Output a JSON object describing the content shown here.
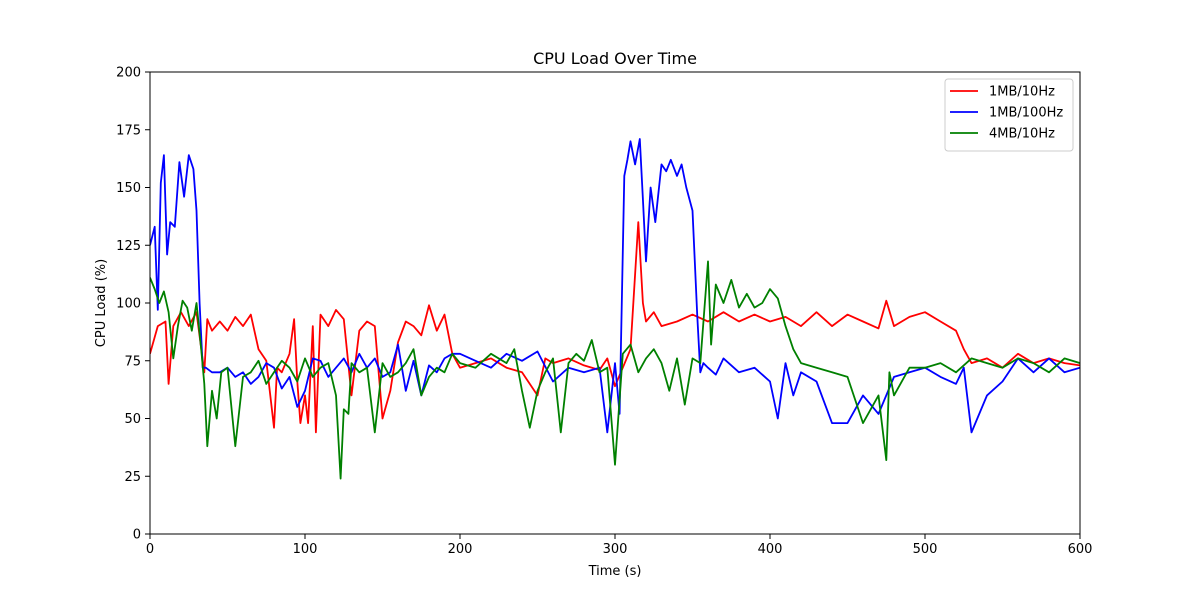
{
  "chart_data": {
    "type": "line",
    "title": "CPU Load Over Time",
    "xlabel": "Time (s)",
    "ylabel": "CPU Load (%)",
    "xlim": [
      0,
      600
    ],
    "ylim": [
      0,
      200
    ],
    "xticks": [
      0,
      100,
      200,
      300,
      400,
      500,
      600
    ],
    "yticks": [
      0,
      25,
      50,
      75,
      100,
      125,
      150,
      175,
      200
    ],
    "grid": false,
    "legend_position": "top-right",
    "series": [
      {
        "name": "1MB/10Hz",
        "color": "#ff0000",
        "x": [
          0,
          5,
          10,
          12,
          15,
          20,
          25,
          30,
          35,
          37,
          40,
          45,
          50,
          55,
          60,
          65,
          70,
          75,
          80,
          82,
          85,
          90,
          93,
          95,
          97,
          100,
          102,
          105,
          107,
          110,
          115,
          120,
          125,
          130,
          135,
          140,
          145,
          150,
          155,
          160,
          165,
          170,
          175,
          180,
          185,
          190,
          195,
          200,
          210,
          220,
          230,
          240,
          250,
          255,
          260,
          270,
          280,
          290,
          295,
          300,
          305,
          310,
          315,
          318,
          320,
          325,
          330,
          340,
          350,
          360,
          370,
          380,
          390,
          400,
          410,
          420,
          430,
          440,
          450,
          460,
          470,
          475,
          480,
          490,
          500,
          510,
          520,
          525,
          530,
          540,
          550,
          560,
          570,
          580,
          590,
          600
        ],
        "y": [
          78,
          90,
          92,
          65,
          90,
          96,
          90,
          96,
          70,
          93,
          88,
          92,
          88,
          94,
          90,
          95,
          80,
          75,
          46,
          72,
          70,
          78,
          93,
          66,
          48,
          60,
          48,
          90,
          44,
          95,
          90,
          97,
          93,
          60,
          88,
          92,
          90,
          50,
          62,
          83,
          92,
          90,
          86,
          99,
          88,
          95,
          78,
          72,
          74,
          76,
          72,
          70,
          60,
          76,
          74,
          76,
          73,
          71,
          76,
          64,
          72,
          80,
          135,
          100,
          92,
          96,
          90,
          92,
          95,
          92,
          96,
          92,
          95,
          92,
          94,
          90,
          96,
          90,
          95,
          92,
          89,
          101,
          90,
          94,
          96,
          92,
          88,
          80,
          74,
          76,
          72,
          78,
          74,
          76,
          74,
          73
        ]
      },
      {
        "name": "1MB/100Hz",
        "color": "#0000ff",
        "x": [
          0,
          3,
          5,
          7,
          9,
          11,
          13,
          16,
          19,
          22,
          25,
          28,
          30,
          32,
          34,
          36,
          40,
          45,
          50,
          55,
          60,
          65,
          70,
          75,
          80,
          85,
          90,
          95,
          100,
          105,
          110,
          115,
          120,
          125,
          130,
          135,
          140,
          145,
          150,
          155,
          160,
          165,
          170,
          175,
          180,
          185,
          190,
          195,
          200,
          210,
          220,
          230,
          240,
          250,
          260,
          270,
          280,
          290,
          295,
          300,
          303,
          306,
          308,
          310,
          313,
          316,
          318,
          320,
          323,
          326,
          330,
          333,
          336,
          340,
          343,
          346,
          350,
          353,
          355,
          357,
          360,
          365,
          370,
          380,
          390,
          400,
          405,
          410,
          415,
          420,
          430,
          440,
          450,
          460,
          470,
          480,
          490,
          500,
          510,
          520,
          525,
          530,
          540,
          550,
          560,
          570,
          580,
          590,
          600
        ],
        "y": [
          125,
          133,
          97,
          152,
          164,
          121,
          135,
          133,
          161,
          146,
          164,
          158,
          140,
          100,
          72,
          72,
          70,
          70,
          72,
          68,
          70,
          65,
          68,
          74,
          72,
          63,
          68,
          55,
          62,
          76,
          75,
          68,
          72,
          76,
          70,
          78,
          72,
          76,
          68,
          70,
          82,
          62,
          75,
          60,
          73,
          70,
          76,
          78,
          78,
          75,
          72,
          78,
          75,
          79,
          66,
          72,
          70,
          72,
          44,
          74,
          52,
          155,
          162,
          170,
          160,
          171,
          145,
          118,
          150,
          135,
          160,
          157,
          162,
          155,
          160,
          150,
          140,
          95,
          70,
          74,
          72,
          69,
          76,
          70,
          72,
          66,
          50,
          74,
          60,
          70,
          66,
          48,
          48,
          60,
          52,
          68,
          70,
          72,
          68,
          65,
          72,
          44,
          60,
          66,
          76,
          70,
          76,
          70,
          72
        ]
      },
      {
        "name": "4MB/10Hz",
        "color": "#008000",
        "x": [
          0,
          3,
          6,
          9,
          12,
          15,
          18,
          21,
          24,
          27,
          30,
          33,
          35,
          37,
          40,
          43,
          46,
          50,
          55,
          60,
          65,
          70,
          75,
          80,
          85,
          90,
          95,
          100,
          105,
          110,
          115,
          120,
          123,
          125,
          128,
          130,
          135,
          140,
          145,
          150,
          155,
          160,
          165,
          170,
          175,
          180,
          185,
          190,
          195,
          200,
          210,
          220,
          230,
          235,
          240,
          245,
          250,
          255,
          260,
          265,
          270,
          275,
          280,
          285,
          290,
          295,
          300,
          305,
          310,
          315,
          320,
          325,
          330,
          335,
          340,
          345,
          350,
          355,
          360,
          362,
          365,
          370,
          375,
          380,
          385,
          390,
          395,
          400,
          405,
          410,
          415,
          420,
          430,
          440,
          450,
          460,
          470,
          475,
          477,
          480,
          490,
          500,
          510,
          520,
          530,
          540,
          550,
          560,
          570,
          580,
          590,
          600
        ],
        "y": [
          111,
          106,
          100,
          105,
          96,
          76,
          90,
          101,
          98,
          88,
          100,
          80,
          65,
          38,
          62,
          50,
          70,
          72,
          38,
          68,
          70,
          75,
          65,
          70,
          75,
          72,
          66,
          76,
          68,
          72,
          74,
          60,
          24,
          54,
          52,
          74,
          70,
          72,
          44,
          74,
          68,
          70,
          74,
          80,
          60,
          68,
          72,
          70,
          78,
          74,
          72,
          78,
          74,
          80,
          62,
          46,
          62,
          70,
          76,
          44,
          74,
          78,
          75,
          84,
          70,
          72,
          30,
          78,
          82,
          70,
          76,
          80,
          74,
          62,
          76,
          56,
          76,
          74,
          118,
          82,
          108,
          100,
          110,
          98,
          104,
          98,
          100,
          106,
          102,
          90,
          80,
          74,
          72,
          70,
          68,
          48,
          60,
          32,
          70,
          60,
          72,
          72,
          74,
          70,
          76,
          74,
          72,
          76,
          74,
          70,
          76,
          74
        ]
      }
    ]
  }
}
